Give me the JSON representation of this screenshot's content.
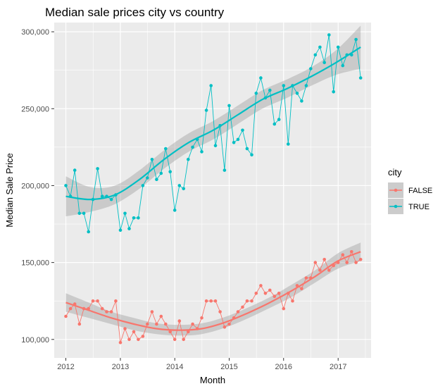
{
  "chart_data": {
    "type": "line",
    "title": "Median sale prices city vs country",
    "xlabel": "Month",
    "ylabel": "Median Sale Price",
    "x_ticks": [
      "2012",
      "2013",
      "2014",
      "2015",
      "2016",
      "2017"
    ],
    "y_ticks": [
      "100,000",
      "150,000",
      "200,000",
      "250,000",
      "300,000"
    ],
    "x_range": [
      "2011-10-15",
      "2017-08-10"
    ],
    "y_range": [
      88000,
      306000
    ],
    "x_tick_dates": [
      "2012-01-01",
      "2013-01-01",
      "2014-01-01",
      "2015-01-01",
      "2016-01-01",
      "2017-01-01"
    ],
    "y_tick_values": [
      100000,
      150000,
      200000,
      250000,
      300000
    ],
    "grid": true,
    "panel_background": "#ebebeb",
    "legend": {
      "title": "city",
      "position": "right",
      "entries": [
        "FALSE",
        "TRUE"
      ]
    },
    "series": [
      {
        "name": "FALSE",
        "color": "#F8766D",
        "start_month": "2012-01",
        "values": [
          115000,
          120000,
          123000,
          110000,
          120000,
          120000,
          125000,
          125000,
          120000,
          118000,
          118000,
          125000,
          98000,
          107000,
          100000,
          105000,
          100000,
          102000,
          110000,
          118000,
          110000,
          115000,
          110000,
          105000,
          100000,
          112000,
          100000,
          105000,
          110000,
          107000,
          114000,
          125000,
          125000,
          125000,
          118000,
          108000,
          110000,
          114000,
          118000,
          121000,
          125000,
          125000,
          130000,
          135000,
          130000,
          132000,
          128000,
          130000,
          120000,
          130000,
          125000,
          135000,
          133000,
          140000,
          140000,
          150000,
          145000,
          152000,
          145000,
          148000,
          150000,
          155000,
          150000,
          157000,
          150000,
          152000
        ],
        "smooth": [
          124000,
          119000,
          114000,
          110000,
          107000,
          106000,
          107000,
          111000,
          117000,
          124000,
          132000,
          141000,
          151000,
          157000
        ],
        "smooth_band": [
          6000,
          5000,
          4000,
          4000,
          3500,
          3500,
          3500,
          3500,
          3500,
          3500,
          4000,
          4000,
          5000,
          6000
        ]
      },
      {
        "name": "TRUE",
        "color": "#00BFC4",
        "start_month": "2012-01",
        "values": [
          200000,
          193000,
          210000,
          182000,
          182000,
          170000,
          191000,
          211000,
          193000,
          193000,
          191000,
          194000,
          171000,
          182000,
          172000,
          179000,
          179000,
          200000,
          205000,
          217000,
          204000,
          208000,
          224000,
          209000,
          184000,
          200000,
          198000,
          217000,
          225000,
          230000,
          222000,
          249000,
          265000,
          226000,
          239000,
          210000,
          252000,
          228000,
          230000,
          236000,
          224000,
          220000,
          260000,
          270000,
          257000,
          262000,
          240000,
          243000,
          265000,
          227000,
          265000,
          260000,
          255000,
          265000,
          276000,
          285000,
          290000,
          280000,
          298000,
          261000,
          290000,
          278000,
          285000,
          285000,
          295000,
          270000
        ],
        "smooth": [
          193000,
          191000,
          194000,
          204000,
          217000,
          228000,
          236000,
          246000,
          256000,
          263000,
          271000,
          280000,
          290000
        ],
        "smooth_band": [
          13000,
          8000,
          6000,
          6000,
          6000,
          6000,
          6000,
          6000,
          6000,
          6000,
          6000,
          8000,
          14000
        ]
      }
    ]
  }
}
